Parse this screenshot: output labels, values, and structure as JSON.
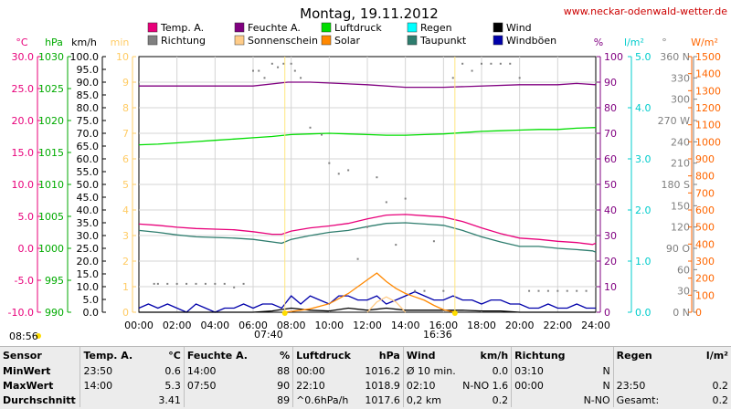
{
  "page": {
    "title": "Montag, 19.11.2012",
    "site": "www.neckar-odenwald-wetter.de"
  },
  "legend": [
    {
      "label": "Temp. A.",
      "color": "#e8007a"
    },
    {
      "label": "Feuchte A.",
      "color": "#800080"
    },
    {
      "label": "Luftdruck",
      "color": "#00dd00"
    },
    {
      "label": "Regen",
      "color": "#00ffff"
    },
    {
      "label": "Wind",
      "color": "#000000"
    },
    {
      "label": "Richtung",
      "color": "#808080"
    },
    {
      "label": "Sonnenschein",
      "color": "#ffcc88"
    },
    {
      "label": "Solar",
      "color": "#ff8800"
    },
    {
      "label": "Taupunkt",
      "color": "#2e7d6e"
    },
    {
      "label": "Windböen",
      "color": "#0000aa"
    }
  ],
  "axis_units": [
    {
      "label": "°C",
      "color": "#e8007a"
    },
    {
      "label": "hPa",
      "color": "#00aa00"
    },
    {
      "label": "km/h",
      "color": "#000000"
    },
    {
      "label": "min",
      "color": "#ffcc66"
    },
    {
      "label": "%",
      "color": "#800080"
    },
    {
      "label": "l/m²",
      "color": "#00cccc"
    },
    {
      "label": "°",
      "color": "#808080"
    },
    {
      "label": "W/m²",
      "color": "#ff6600"
    }
  ],
  "sun": {
    "sunrise_axis": "08:56",
    "sunrise": "07:40",
    "sunset": "16:36"
  },
  "chart_data": {
    "type": "line",
    "title": "Montag, 19.11.2012",
    "x_ticks": [
      "00:00",
      "02:00",
      "04:00",
      "06:00",
      "08:00",
      "10:00",
      "12:00",
      "14:00",
      "16:00",
      "18:00",
      "20:00",
      "22:00",
      "24:00"
    ],
    "xlim": [
      0,
      24
    ],
    "grid": true,
    "axes": {
      "temp_c": {
        "range": [
          -10,
          30
        ],
        "ticks": [
          "30.0",
          "25.0",
          "20.0",
          "15.0",
          "10.0",
          "5.0",
          "0.0",
          "-5.0",
          "-10.0"
        ]
      },
      "pressure_hpa": {
        "range": [
          990,
          1030
        ],
        "ticks": [
          "1030",
          "1025",
          "1020",
          "1015",
          "1010",
          "1005",
          "1000",
          "995",
          "990"
        ]
      },
      "wind_kmh": {
        "range": [
          0,
          100
        ],
        "ticks": [
          "100.0",
          "95.0",
          "90.0",
          "85.0",
          "80.0",
          "75.0",
          "70.0",
          "65.0",
          "60.0",
          "55.0",
          "50.0",
          "45.0",
          "40.0",
          "35.0",
          "30.0",
          "25.0",
          "20.0",
          "15.0",
          "10.0",
          "5.0",
          "0.0"
        ]
      },
      "sunshine_min": {
        "range": [
          0,
          10
        ],
        "ticks": [
          "10",
          "9",
          "8",
          "7",
          "6",
          "5",
          "4",
          "3",
          "2",
          "1",
          "0"
        ]
      },
      "humidity_pct": {
        "range": [
          0,
          100
        ],
        "ticks": [
          "100",
          "90",
          "80",
          "70",
          "60",
          "50",
          "40",
          "30",
          "20",
          "10",
          "0"
        ]
      },
      "rain_lm2": {
        "range": [
          0,
          5
        ],
        "ticks": [
          "5.0",
          "4.0",
          "3.0",
          "2.0",
          "1.0",
          "0.0"
        ]
      },
      "direction_deg": {
        "range": [
          0,
          360
        ],
        "ticks": [
          "360 N",
          "330",
          "300",
          "270 W",
          "240",
          "210",
          "180 S",
          "150",
          "120",
          "90 O",
          "60",
          "30",
          "0 N"
        ]
      },
      "solar_wm2": {
        "range": [
          0,
          1500
        ],
        "ticks": [
          "1500",
          "1400",
          "1300",
          "1200",
          "1100",
          "1000",
          "900",
          "800",
          "700",
          "600",
          "500",
          "400",
          "300",
          "200",
          "100",
          "0"
        ]
      }
    },
    "series": [
      {
        "name": "Temp. A.",
        "axis": "temp_c",
        "color": "#e8007a",
        "x": [
          0,
          1,
          2,
          3,
          4,
          5,
          6,
          7,
          7.5,
          8,
          9,
          10,
          11,
          12,
          13,
          14,
          15,
          16,
          17,
          18,
          19,
          20,
          21,
          22,
          23,
          23.83,
          24
        ],
        "values": [
          3.8,
          3.6,
          3.3,
          3.1,
          3.0,
          2.9,
          2.6,
          2.2,
          2.2,
          2.7,
          3.2,
          3.5,
          3.9,
          4.6,
          5.2,
          5.3,
          5.1,
          4.9,
          4.2,
          3.2,
          2.3,
          1.6,
          1.4,
          1.1,
          0.9,
          0.6,
          0.8
        ]
      },
      {
        "name": "Taupunkt",
        "axis": "temp_c",
        "color": "#2e7d6e",
        "x": [
          0,
          1,
          2,
          3,
          4,
          5,
          6,
          7,
          7.5,
          8,
          9,
          10,
          11,
          12,
          13,
          14,
          15,
          16,
          17,
          18,
          19,
          20,
          21,
          22,
          23,
          23.83,
          24
        ],
        "values": [
          2.8,
          2.5,
          2.1,
          1.8,
          1.7,
          1.6,
          1.4,
          1.0,
          0.8,
          1.4,
          2.0,
          2.5,
          2.8,
          3.4,
          3.9,
          4.0,
          3.8,
          3.6,
          2.8,
          1.8,
          1.0,
          0.3,
          0.3,
          0.0,
          -0.2,
          -0.4,
          -0.6
        ]
      },
      {
        "name": "Feuchte A.",
        "axis": "humidity_pct",
        "color": "#800080",
        "x": [
          0,
          6,
          7.83,
          9,
          12,
          14,
          16,
          20,
          22,
          23,
          24
        ],
        "values": [
          88.5,
          88.5,
          90,
          90,
          89,
          88,
          88,
          89,
          89,
          89.5,
          89
        ]
      },
      {
        "name": "Luftdruck",
        "axis": "pressure_hpa",
        "color": "#00dd00",
        "x": [
          0,
          1,
          2,
          3,
          4,
          5,
          6,
          7,
          8,
          9,
          10,
          11,
          12,
          13,
          14,
          15,
          16,
          17,
          18,
          19,
          20,
          21,
          22,
          23,
          24
        ],
        "values": [
          1016.2,
          1016.3,
          1016.5,
          1016.7,
          1016.9,
          1017.1,
          1017.3,
          1017.5,
          1017.8,
          1017.9,
          1018.0,
          1017.9,
          1017.8,
          1017.7,
          1017.7,
          1017.8,
          1017.9,
          1018.1,
          1018.3,
          1018.4,
          1018.5,
          1018.6,
          1018.6,
          1018.8,
          1018.9
        ]
      },
      {
        "name": "Windböen",
        "axis": "wind_kmh",
        "color": "#0000aa",
        "x": [
          0,
          0.5,
          1,
          1.5,
          2,
          2.5,
          3,
          3.5,
          4,
          4.5,
          5,
          5.5,
          6,
          6.5,
          7,
          7.5,
          8,
          8.5,
          9,
          9.5,
          10,
          10.5,
          11,
          11.5,
          12,
          12.5,
          13,
          13.5,
          14,
          14.5,
          15,
          15.5,
          16,
          16.5,
          17,
          17.5,
          18,
          18.5,
          19,
          19.5,
          20,
          20.5,
          21,
          21.5,
          22,
          22.5,
          23,
          23.5,
          24
        ],
        "values": [
          1.6,
          3.2,
          1.6,
          3.2,
          1.6,
          0,
          3.2,
          1.6,
          0,
          1.6,
          1.6,
          3.2,
          1.6,
          3.2,
          3.2,
          1.6,
          6.4,
          3.2,
          6.4,
          4.8,
          3.2,
          6.4,
          6.4,
          4.8,
          4.8,
          6.4,
          3.2,
          4.8,
          6.4,
          8.0,
          6.4,
          4.8,
          4.8,
          6.4,
          4.8,
          4.8,
          3.2,
          4.8,
          4.8,
          3.2,
          3.2,
          1.6,
          1.6,
          3.2,
          1.6,
          1.6,
          3.2,
          1.6,
          1.6
        ]
      },
      {
        "name": "Wind",
        "axis": "wind_kmh",
        "color": "#000000",
        "x": [
          0,
          1,
          2,
          3,
          4,
          5,
          6,
          7,
          8,
          9,
          10,
          11,
          12,
          13,
          14,
          15,
          16,
          17,
          18,
          19,
          20,
          21,
          22,
          23,
          24
        ],
        "values": [
          0,
          0,
          0,
          0,
          0,
          0,
          0,
          0.5,
          1.6,
          0.8,
          0.5,
          1.6,
          0.8,
          1.6,
          0.8,
          0.8,
          0.8,
          0.8,
          0.5,
          0.5,
          0,
          0,
          0,
          0,
          0
        ]
      },
      {
        "name": "Solar",
        "axis": "solar_wm2",
        "color": "#ff8800",
        "x": [
          7.6,
          8,
          8.5,
          9,
          9.5,
          10,
          10.5,
          11,
          11.5,
          12,
          12.5,
          13,
          13.5,
          14,
          14.5,
          15,
          15.5,
          16,
          16.6
        ],
        "values": [
          0,
          5,
          12,
          20,
          35,
          50,
          80,
          110,
          150,
          190,
          230,
          180,
          140,
          110,
          90,
          70,
          40,
          15,
          0
        ]
      },
      {
        "name": "Sonnenschein",
        "axis": "sunshine_min",
        "color": "#ffcc88",
        "x": [
          12,
          12.5,
          13,
          13.5,
          14
        ],
        "values": [
          0,
          0.4,
          0.6,
          0.4,
          0
        ]
      },
      {
        "name": "Richtung",
        "axis": "direction_deg",
        "color": "#808080",
        "style": "dots",
        "x": [
          0.8,
          1,
          1.5,
          2,
          2.5,
          3,
          3.5,
          4,
          4.5,
          5,
          5.5,
          6,
          6.3,
          6.6,
          7,
          7.3,
          7.6,
          8,
          8.2,
          8.5,
          9,
          9.6,
          10,
          10.5,
          11,
          11.5,
          12,
          12.5,
          13,
          13.5,
          14,
          14.5,
          15,
          15.5,
          16,
          16.5,
          17,
          17.5,
          18,
          18.5,
          19,
          19.5,
          20,
          20.5,
          21,
          21.5,
          22,
          22.5,
          23,
          23.5
        ],
        "values": [
          40,
          40,
          40,
          40,
          40,
          40,
          40,
          40,
          40,
          35,
          40,
          340,
          340,
          330,
          350,
          345,
          350,
          350,
          340,
          330,
          260,
          250,
          210,
          195,
          200,
          75,
          120,
          190,
          155,
          95,
          160,
          30,
          30,
          100,
          30,
          330,
          350,
          340,
          350,
          350,
          350,
          350,
          330,
          30,
          30,
          30,
          30,
          30,
          30,
          30
        ]
      }
    ]
  },
  "stats": {
    "header": [
      "Sensor",
      "Temp. A.",
      "°C",
      "Feuchte A.",
      "%",
      "Luftdruck",
      "hPa",
      "Wind",
      "km/h",
      "Richtung",
      "",
      "Regen",
      "l/m²"
    ],
    "rows": [
      [
        "MinWert",
        "23:50",
        "0.6",
        "14:00",
        "88",
        "00:00",
        "1016.2",
        "Ø 10 min.",
        "0.0",
        "03:10",
        "N",
        "",
        ""
      ],
      [
        "MaxWert",
        "14:00",
        "5.3",
        "07:50",
        "90",
        "22:10",
        "1018.9",
        "02:10",
        "N-NO 1.6",
        "00:00",
        "N",
        "23:50",
        "0.2"
      ],
      [
        "Durchschnitt",
        "",
        "3.41",
        "",
        "89",
        "^0.6hPa/h",
        "1017.6",
        "0,2 km",
        "0.2",
        "",
        "N-NO",
        "Gesamt:",
        "0.2"
      ]
    ]
  }
}
